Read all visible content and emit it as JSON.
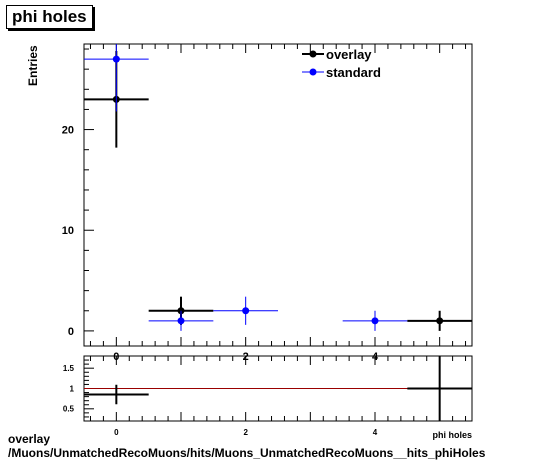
{
  "chart_data": [
    {
      "type": "scatter",
      "title": "phi holes",
      "ylabel": "Entries",
      "xlim": [
        -0.5,
        5.5
      ],
      "ylim": [
        -1.5,
        28.5
      ],
      "xticks": [
        0,
        2,
        4
      ],
      "yticks": [
        0,
        10,
        20
      ],
      "legend_position": "top-right",
      "series": [
        {
          "name": "overlay",
          "color": "#000000",
          "points": [
            {
              "x": 0,
              "y": 23,
              "xerr": 0.5,
              "yerr": 4.8
            },
            {
              "x": 1,
              "y": 2,
              "xerr": 0.5,
              "yerr": 1.4
            },
            {
              "x": 5,
              "y": 1,
              "xerr": 0.5,
              "yerr": 1.0
            }
          ]
        },
        {
          "name": "standard",
          "color": "#0000ff",
          "points": [
            {
              "x": 0,
              "y": 27,
              "xerr": 0.5,
              "yerr": 5.2
            },
            {
              "x": 1,
              "y": 1,
              "xerr": 0.5,
              "yerr": 1.0
            },
            {
              "x": 2,
              "y": 2,
              "xerr": 0.5,
              "yerr": 1.4
            },
            {
              "x": 4,
              "y": 1,
              "xerr": 0.5,
              "yerr": 1.0
            }
          ]
        }
      ]
    },
    {
      "type": "scatter",
      "xlabel": "phi holes",
      "xlim": [
        -0.5,
        5.5
      ],
      "ylim": [
        0.2,
        1.8
      ],
      "xticks": [
        0,
        2,
        4
      ],
      "yticks": [
        0.5,
        1,
        1.5
      ],
      "reference_line": {
        "y": 1,
        "color": "#990000"
      },
      "series": [
        {
          "name": "",
          "color": "#000000",
          "points": [
            {
              "x": 0,
              "y": 0.852,
              "xerr": 0.5,
              "yerr": 0.24
            },
            {
              "x": 5,
              "y": 1.0,
              "xerr": 0.5,
              "yerr": 1.41
            }
          ]
        }
      ]
    }
  ],
  "footer": {
    "line1": "overlay",
    "line2": "/Muons/UnmatchedRecoMuons/hits/Muons_UnmatchedRecoMuons__hits_phiHoles"
  }
}
